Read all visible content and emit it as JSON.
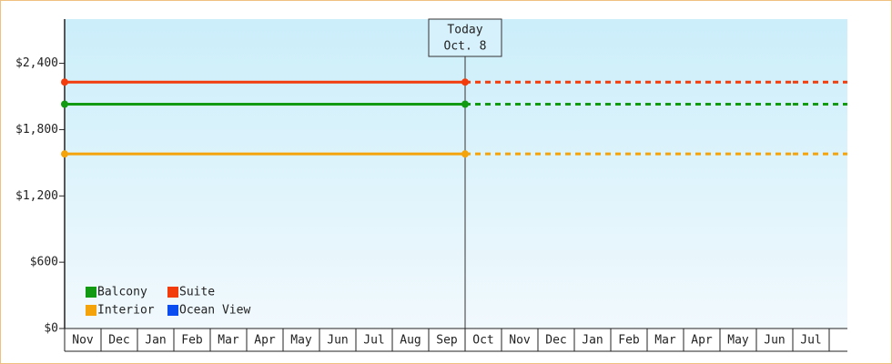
{
  "chart_data": {
    "type": "line",
    "categories": [
      "Nov",
      "Dec",
      "Jan",
      "Feb",
      "Mar",
      "Apr",
      "May",
      "Jun",
      "Jul",
      "Aug",
      "Sep",
      "Oct",
      "Nov",
      "Dec",
      "Jan",
      "Feb",
      "Mar",
      "Apr",
      "May",
      "Jun",
      "Jul"
    ],
    "series": [
      {
        "name": "Balcony",
        "color": "#129a12",
        "values": [
          2030,
          2030,
          2030,
          2030,
          2030,
          2030,
          2030,
          2030,
          2030,
          2030,
          2030,
          2030,
          2030,
          2030,
          2030,
          2030,
          2030,
          2030,
          2030,
          2030,
          2030
        ]
      },
      {
        "name": "Suite",
        "color": "#f23c0c",
        "values": [
          2230,
          2230,
          2230,
          2230,
          2230,
          2230,
          2230,
          2230,
          2230,
          2230,
          2230,
          2230,
          2230,
          2230,
          2230,
          2230,
          2230,
          2230,
          2230,
          2230,
          2230
        ]
      },
      {
        "name": "Interior",
        "color": "#f5a30a",
        "values": [
          1580,
          1580,
          1580,
          1580,
          1580,
          1580,
          1580,
          1580,
          1580,
          1580,
          1580,
          1580,
          1580,
          1580,
          1580,
          1580,
          1580,
          1580,
          1580,
          1580,
          1580
        ]
      },
      {
        "name": "Ocean View",
        "color": "#0a4cf0",
        "values": [
          null,
          null,
          null,
          null,
          null,
          null,
          null,
          null,
          null,
          null,
          null,
          null,
          null,
          null,
          null,
          null,
          null,
          null,
          null,
          null,
          null
        ]
      }
    ],
    "ylim": [
      0,
      2800
    ],
    "yticks": [
      {
        "value": 0,
        "label": "$0"
      },
      {
        "value": 600,
        "label": "$600"
      },
      {
        "value": 1200,
        "label": "$1,200"
      },
      {
        "value": 1800,
        "label": "$1,800"
      },
      {
        "value": 2400,
        "label": "$2,400"
      }
    ],
    "today": {
      "label": [
        "Today",
        "Oct. 8"
      ],
      "category_index": 11
    },
    "legend": "bottom-left"
  }
}
